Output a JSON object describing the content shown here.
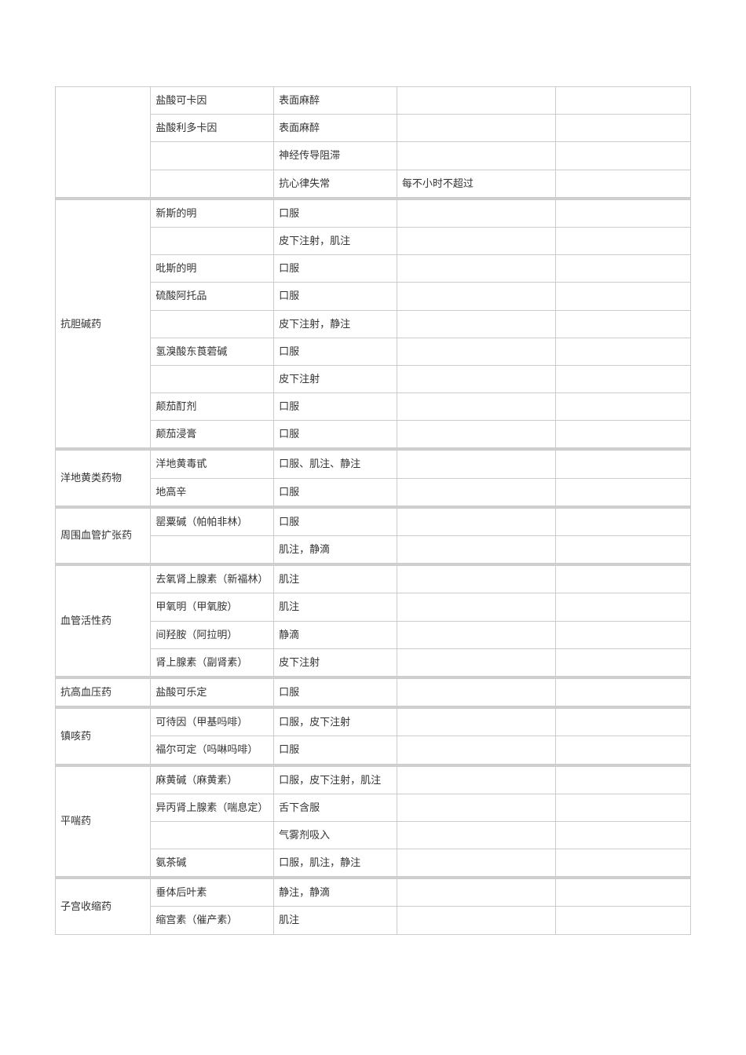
{
  "groups": [
    {
      "category": "",
      "rows": [
        {
          "name": "盐酸可卡因",
          "route": "表面麻醉",
          "dose": "",
          "note": ""
        },
        {
          "name": "盐酸利多卡因",
          "route": "表面麻醉",
          "dose": "",
          "note": ""
        },
        {
          "name": "",
          "route": "神经传导阻滞",
          "dose": "",
          "note": ""
        },
        {
          "name": "",
          "route": "抗心律失常",
          "dose": "每不小时不超过",
          "note": ""
        }
      ]
    },
    {
      "category": "抗胆碱药",
      "rows": [
        {
          "name": "新斯的明",
          "route": "口服",
          "dose": "",
          "note": ""
        },
        {
          "name": "",
          "route": "皮下注射，肌注",
          "dose": "",
          "note": ""
        },
        {
          "name": "吡斯的明",
          "route": "口服",
          "dose": "",
          "note": ""
        },
        {
          "name": "硫酸阿托品",
          "route": "口服",
          "dose": "",
          "note": ""
        },
        {
          "name": "",
          "route": "皮下注射，静注",
          "dose": "",
          "note": ""
        },
        {
          "name": "氢溴酸东莨菪碱",
          "route": "口服",
          "dose": "",
          "note": ""
        },
        {
          "name": "",
          "route": "皮下注射",
          "dose": "",
          "note": ""
        },
        {
          "name": "颠茄酊剂",
          "route": "口服",
          "dose": "",
          "note": ""
        },
        {
          "name": "颠茄浸膏",
          "route": "口服",
          "dose": "",
          "note": ""
        }
      ]
    },
    {
      "category": "洋地黄类药物",
      "rows": [
        {
          "name": "洋地黄毒甙",
          "route": "口服、肌注、静注",
          "dose": "",
          "note": ""
        },
        {
          "name": "地高辛",
          "route": "口服",
          "dose": "",
          "note": ""
        }
      ]
    },
    {
      "category": "周围血管扩张药",
      "rows": [
        {
          "name": "罂粟碱（帕帕非林）",
          "route": "口服",
          "dose": "",
          "note": ""
        },
        {
          "name": "",
          "route": "肌注，静滴",
          "dose": "",
          "note": ""
        }
      ]
    },
    {
      "category": "血管活性药",
      "rows": [
        {
          "name": "去氧肾上腺素（新福林）",
          "route": "肌注",
          "dose": "",
          "note": ""
        },
        {
          "name": "甲氧明（甲氧胺）",
          "route": "肌注",
          "dose": "",
          "note": ""
        },
        {
          "name": "间羟胺（阿拉明）",
          "route": "静滴",
          "dose": "",
          "note": ""
        },
        {
          "name": "肾上腺素（副肾素）",
          "route": "皮下注射",
          "dose": "",
          "note": ""
        }
      ]
    },
    {
      "category": "抗高血压药",
      "rows": [
        {
          "name": "盐酸可乐定",
          "route": "口服",
          "dose": "",
          "note": ""
        }
      ]
    },
    {
      "category": "镇咳药",
      "rows": [
        {
          "name": "可待因（甲基吗啡）",
          "route": "口服，皮下注射",
          "dose": "",
          "note": ""
        },
        {
          "name": "福尔可定（吗啉吗啡）",
          "route": "口服",
          "dose": "",
          "note": ""
        }
      ]
    },
    {
      "category": "平喘药",
      "rows": [
        {
          "name": "麻黄碱（麻黄素）",
          "route": "口服，皮下注射，肌注",
          "dose": "",
          "note": ""
        },
        {
          "name": "异丙肾上腺素（喘息定）",
          "route": "舌下含服",
          "dose": "",
          "note": ""
        },
        {
          "name": "",
          "route": "气雾剂吸入",
          "dose": "",
          "note": ""
        },
        {
          "name": "氨茶碱",
          "route": "口服，肌注，静注",
          "dose": "",
          "note": ""
        }
      ]
    },
    {
      "category": "子宫收缩药",
      "rows": [
        {
          "name": "垂体后叶素",
          "route": "静注，静滴",
          "dose": "",
          "note": ""
        },
        {
          "name": "缩宫素（催产素）",
          "route": "肌注",
          "dose": "",
          "note": ""
        }
      ]
    }
  ]
}
